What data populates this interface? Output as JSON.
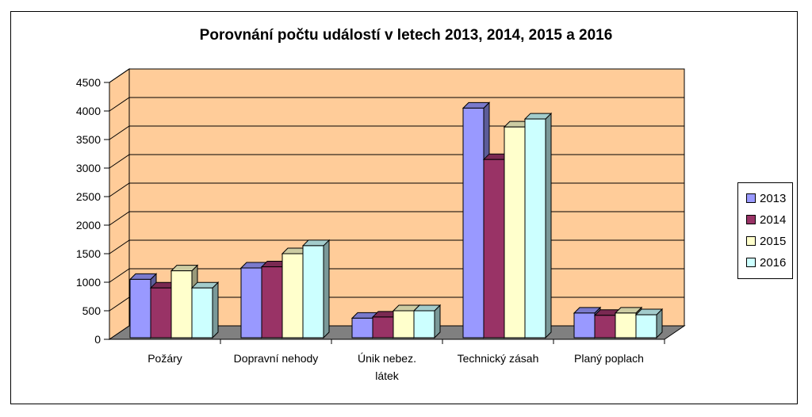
{
  "chart_data": {
    "type": "bar",
    "title": "Porovnání počtu událostí v letech 2013,  2014,  2015 a 2016",
    "categories": [
      [
        "Požáry"
      ],
      [
        "Dopravní nehody"
      ],
      [
        "Únik nebez.",
        "látek"
      ],
      [
        "Technický zásah"
      ],
      [
        "Planý poplach"
      ]
    ],
    "series": [
      {
        "name": "2013",
        "values": [
          1050,
          1250,
          370,
          4050,
          460
        ]
      },
      {
        "name": "2014",
        "values": [
          900,
          1270,
          390,
          3150,
          420
        ]
      },
      {
        "name": "2015",
        "values": [
          1200,
          1500,
          500,
          3720,
          460
        ]
      },
      {
        "name": "2016",
        "values": [
          900,
          1640,
          500,
          3860,
          430
        ]
      }
    ],
    "ylim": [
      0,
      4500
    ],
    "yticks": [
      0,
      500,
      1000,
      1500,
      2000,
      2500,
      3000,
      3500,
      4000,
      4500
    ],
    "grid": true,
    "legend": "right",
    "colors": {
      "series": [
        "#9999ff",
        "#993366",
        "#ffffcc",
        "#ccffff"
      ],
      "wall": "#ffcc99",
      "floor": "#808080",
      "grid": "#000000"
    }
  }
}
